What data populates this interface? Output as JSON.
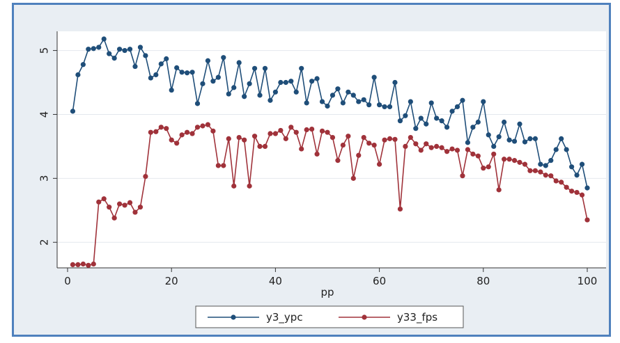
{
  "chart_data": {
    "type": "line",
    "title": "",
    "xlabel": "pp",
    "ylabel": "",
    "xlim": [
      0,
      100
    ],
    "ylim": [
      1.6,
      5.3
    ],
    "xticks": [
      0,
      20,
      40,
      60,
      80,
      100
    ],
    "yticks": [
      2,
      3,
      4,
      5
    ],
    "grid": "horizontal",
    "legend_position": "bottom",
    "x": [
      1,
      2,
      3,
      4,
      5,
      6,
      7,
      8,
      9,
      10,
      11,
      12,
      13,
      14,
      15,
      16,
      17,
      18,
      19,
      20,
      21,
      22,
      23,
      24,
      25,
      26,
      27,
      28,
      29,
      30,
      31,
      32,
      33,
      34,
      35,
      36,
      37,
      38,
      39,
      40,
      41,
      42,
      43,
      44,
      45,
      46,
      47,
      48,
      49,
      50,
      51,
      52,
      53,
      54,
      55,
      56,
      57,
      58,
      59,
      60,
      61,
      62,
      63,
      64,
      65,
      66,
      67,
      68,
      69,
      70,
      71,
      72,
      73,
      74,
      75,
      76,
      77,
      78,
      79,
      80,
      81,
      82,
      83,
      84,
      85,
      86,
      87,
      88,
      89,
      90,
      91,
      92,
      93,
      94,
      95,
      96,
      97,
      98,
      99,
      100
    ],
    "series": [
      {
        "name": "y3_ypc",
        "color": "#1f4e79",
        "values": [
          4.05,
          4.62,
          4.78,
          5.02,
          5.03,
          5.05,
          5.18,
          4.95,
          4.88,
          5.02,
          5.0,
          5.02,
          4.75,
          5.05,
          4.92,
          4.57,
          4.62,
          4.79,
          4.87,
          4.38,
          4.73,
          4.66,
          4.65,
          4.66,
          4.17,
          4.48,
          4.84,
          4.52,
          4.58,
          4.89,
          4.32,
          4.42,
          4.81,
          4.28,
          4.48,
          4.72,
          4.3,
          4.72,
          4.22,
          4.35,
          4.5,
          4.5,
          4.52,
          4.35,
          4.72,
          4.18,
          4.52,
          4.56,
          4.2,
          4.13,
          4.3,
          4.4,
          4.18,
          4.35,
          4.3,
          4.2,
          4.23,
          4.15,
          4.58,
          4.15,
          4.12,
          4.12,
          4.5,
          3.9,
          3.98,
          4.2,
          3.78,
          3.94,
          3.85,
          4.18,
          3.94,
          3.9,
          3.8,
          4.05,
          4.12,
          4.22,
          3.56,
          3.8,
          3.88,
          4.2,
          3.68,
          3.5,
          3.65,
          3.88,
          3.6,
          3.58,
          3.85,
          3.57,
          3.62,
          3.62,
          3.22,
          3.2,
          3.28,
          3.45,
          3.62,
          3.45,
          3.18,
          3.05,
          3.22,
          2.85
        ]
      },
      {
        "name": "y33_fps",
        "color": "#a0323a",
        "values": [
          1.65,
          1.65,
          1.66,
          1.64,
          1.66,
          2.63,
          2.68,
          2.55,
          2.38,
          2.6,
          2.58,
          2.62,
          2.47,
          2.55,
          3.03,
          3.72,
          3.73,
          3.8,
          3.78,
          3.6,
          3.55,
          3.68,
          3.72,
          3.7,
          3.8,
          3.82,
          3.84,
          3.74,
          3.2,
          3.2,
          3.62,
          2.88,
          3.64,
          3.6,
          2.88,
          3.66,
          3.5,
          3.5,
          3.7,
          3.7,
          3.75,
          3.62,
          3.8,
          3.72,
          3.46,
          3.76,
          3.77,
          3.38,
          3.74,
          3.72,
          3.64,
          3.28,
          3.52,
          3.66,
          3.0,
          3.36,
          3.64,
          3.55,
          3.52,
          3.22,
          3.6,
          3.62,
          3.61,
          2.52,
          3.5,
          3.64,
          3.54,
          3.44,
          3.54,
          3.48,
          3.5,
          3.48,
          3.42,
          3.46,
          3.44,
          3.04,
          3.45,
          3.38,
          3.35,
          3.16,
          3.18,
          3.38,
          2.82,
          3.3,
          3.3,
          3.28,
          3.25,
          3.22,
          3.12,
          3.12,
          3.1,
          3.05,
          3.04,
          2.96,
          2.94,
          2.86,
          2.8,
          2.78,
          2.74,
          2.35
        ]
      }
    ]
  }
}
